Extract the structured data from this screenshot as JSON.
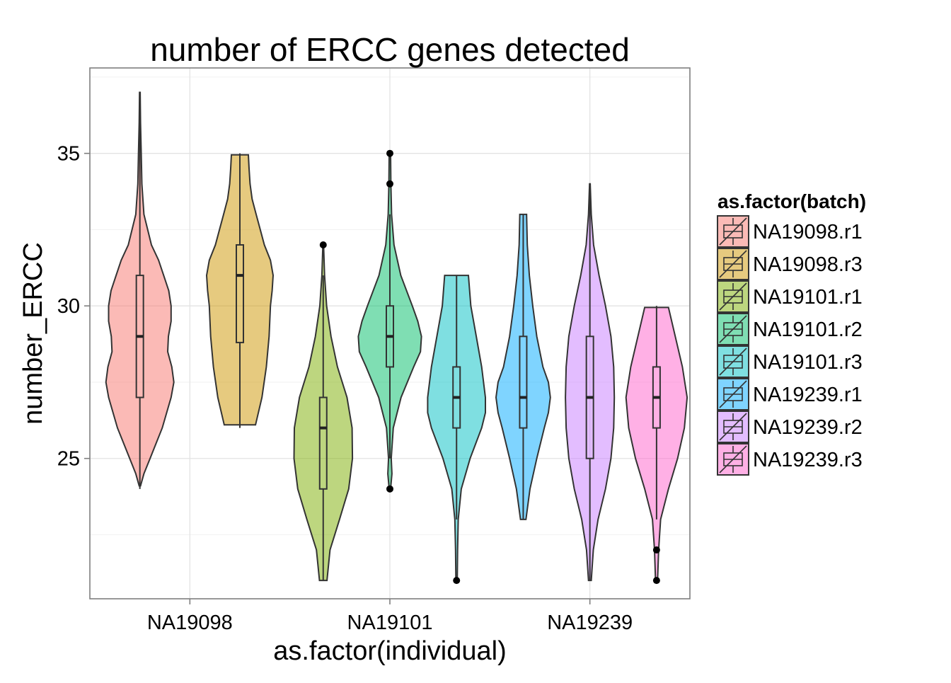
{
  "chart_data": {
    "type": "violin",
    "title": "number of ERCC genes detected",
    "xlabel": "as.factor(individual)",
    "ylabel": "number_ERCC",
    "ylim": [
      20.4,
      37.8
    ],
    "yticks": [
      25,
      30,
      35
    ],
    "grid": true,
    "categories": [
      "NA19098",
      "NA19101",
      "NA19239"
    ],
    "legend": {
      "title": "as.factor(batch)",
      "position": "right",
      "items": [
        {
          "label": "NA19098.r1",
          "color": "#F8766D"
        },
        {
          "label": "NA19098.r3",
          "color": "#CD9600"
        },
        {
          "label": "NA19101.r1",
          "color": "#7CAE00"
        },
        {
          "label": "NA19101.r2",
          "color": "#00BE67"
        },
        {
          "label": "NA19101.r3",
          "color": "#00BFC4"
        },
        {
          "label": "NA19239.r1",
          "color": "#00A9FF"
        },
        {
          "label": "NA19239.r2",
          "color": "#C77CFF"
        },
        {
          "label": "NA19239.r3",
          "color": "#FF61CC"
        }
      ]
    },
    "series": [
      {
        "name": "NA19098.r1",
        "category": "NA19098",
        "color": "#F8766D",
        "box": {
          "min": 24,
          "q1": 27,
          "median": 29,
          "q3": 31,
          "max": 37
        },
        "outliers": [],
        "violin": [
          [
            24.1,
            0.02
          ],
          [
            24.5,
            0.12
          ],
          [
            25,
            0.3
          ],
          [
            26,
            0.66
          ],
          [
            27,
            0.92
          ],
          [
            27.5,
            1.0
          ],
          [
            28,
            0.94
          ],
          [
            28.5,
            0.82
          ],
          [
            29,
            0.84
          ],
          [
            29.5,
            0.92
          ],
          [
            30,
            0.92
          ],
          [
            30.5,
            0.85
          ],
          [
            31,
            0.7
          ],
          [
            31.5,
            0.55
          ],
          [
            32,
            0.34
          ],
          [
            33,
            0.12
          ],
          [
            34,
            0.06
          ],
          [
            35,
            0.04
          ],
          [
            36,
            0.02
          ],
          [
            37,
            0.01
          ]
        ]
      },
      {
        "name": "NA19098.r3",
        "category": "NA19098",
        "color": "#CD9600",
        "box": {
          "min": 26,
          "q1": 28.8,
          "median": 31,
          "q3": 32,
          "max": 35
        },
        "outliers": [],
        "violin": [
          [
            26.1,
            0.46
          ],
          [
            27,
            0.65
          ],
          [
            28,
            0.78
          ],
          [
            29,
            0.86
          ],
          [
            30,
            0.9
          ],
          [
            30.5,
            0.95
          ],
          [
            31,
            0.98
          ],
          [
            31.5,
            0.9
          ],
          [
            32,
            0.72
          ],
          [
            32.5,
            0.6
          ],
          [
            33,
            0.48
          ],
          [
            33.5,
            0.36
          ],
          [
            34,
            0.3
          ],
          [
            34.5,
            0.27
          ],
          [
            34.95,
            0.25
          ]
        ]
      },
      {
        "name": "NA19101.r1",
        "category": "NA19101",
        "color": "#7CAE00",
        "box": {
          "min": 21,
          "q1": 24,
          "median": 26,
          "q3": 27,
          "max": 31
        },
        "outliers": [
          32
        ],
        "violin": [
          [
            21,
            0.11
          ],
          [
            22,
            0.2
          ],
          [
            23,
            0.48
          ],
          [
            24,
            0.75
          ],
          [
            25,
            0.86
          ],
          [
            26,
            0.85
          ],
          [
            27,
            0.7
          ],
          [
            28,
            0.42
          ],
          [
            29,
            0.23
          ],
          [
            30,
            0.1
          ],
          [
            31,
            0.04
          ],
          [
            32,
            0.01
          ]
        ]
      },
      {
        "name": "NA19101.r2",
        "category": "NA19101",
        "color": "#00BE67",
        "box": {
          "min": 25,
          "q1": 28,
          "median": 29,
          "q3": 30,
          "max": 33
        },
        "outliers": [
          24,
          34,
          35
        ],
        "violin": [
          [
            24,
            0.02
          ],
          [
            24.5,
            0.06
          ],
          [
            25,
            0.04
          ],
          [
            26,
            0.1
          ],
          [
            27,
            0.33
          ],
          [
            28,
            0.7
          ],
          [
            28.5,
            0.9
          ],
          [
            29,
            0.93
          ],
          [
            29.5,
            0.82
          ],
          [
            30,
            0.66
          ],
          [
            31,
            0.32
          ],
          [
            32,
            0.12
          ],
          [
            33,
            0.05
          ],
          [
            34,
            0.03
          ],
          [
            35,
            0.02
          ]
        ]
      },
      {
        "name": "NA19101.r3",
        "category": "NA19101",
        "color": "#00BFC4",
        "box": {
          "min": 23,
          "q1": 26,
          "median": 27,
          "q3": 28,
          "max": 31
        },
        "outliers": [
          21
        ],
        "violin": [
          [
            21,
            0.02
          ],
          [
            22,
            0.03
          ],
          [
            23,
            0.05
          ],
          [
            24,
            0.14
          ],
          [
            25,
            0.4
          ],
          [
            26,
            0.74
          ],
          [
            26.5,
            0.85
          ],
          [
            27,
            0.85
          ],
          [
            28,
            0.74
          ],
          [
            29,
            0.58
          ],
          [
            30,
            0.42
          ],
          [
            31,
            0.35
          ]
        ]
      },
      {
        "name": "NA19239.r1",
        "category": "NA19239",
        "color": "#00A9FF",
        "box": {
          "min": 23,
          "q1": 26,
          "median": 27,
          "q3": 29,
          "max": 33
        },
        "outliers": [],
        "violin": [
          [
            23,
            0.08
          ],
          [
            24,
            0.2
          ],
          [
            25,
            0.4
          ],
          [
            26,
            0.62
          ],
          [
            26.5,
            0.74
          ],
          [
            27,
            0.8
          ],
          [
            27.5,
            0.74
          ],
          [
            28,
            0.58
          ],
          [
            29,
            0.4
          ],
          [
            30,
            0.28
          ],
          [
            31,
            0.18
          ],
          [
            32,
            0.12
          ],
          [
            33,
            0.1
          ]
        ]
      },
      {
        "name": "NA19239.r2",
        "category": "NA19239",
        "color": "#C77CFF",
        "box": {
          "min": 21,
          "q1": 25,
          "median": 27,
          "q3": 29,
          "max": 34
        },
        "outliers": [],
        "violin": [
          [
            21,
            0.04
          ],
          [
            22,
            0.1
          ],
          [
            23,
            0.24
          ],
          [
            24,
            0.46
          ],
          [
            25,
            0.62
          ],
          [
            26,
            0.7
          ],
          [
            27,
            0.72
          ],
          [
            28,
            0.7
          ],
          [
            29,
            0.62
          ],
          [
            30,
            0.46
          ],
          [
            31,
            0.27
          ],
          [
            32,
            0.11
          ],
          [
            33,
            0.04
          ],
          [
            34,
            0.01
          ]
        ]
      },
      {
        "name": "NA19239.r3",
        "category": "NA19239",
        "color": "#FF61CC",
        "box": {
          "min": 23,
          "q1": 26,
          "median": 27,
          "q3": 28,
          "max": 30
        },
        "outliers": [
          21,
          22
        ],
        "violin": [
          [
            21,
            0.03
          ],
          [
            22,
            0.06
          ],
          [
            23,
            0.12
          ],
          [
            24,
            0.35
          ],
          [
            25,
            0.62
          ],
          [
            26,
            0.82
          ],
          [
            27,
            0.9
          ],
          [
            28,
            0.76
          ],
          [
            29,
            0.55
          ],
          [
            29.95,
            0.35
          ]
        ]
      }
    ]
  }
}
